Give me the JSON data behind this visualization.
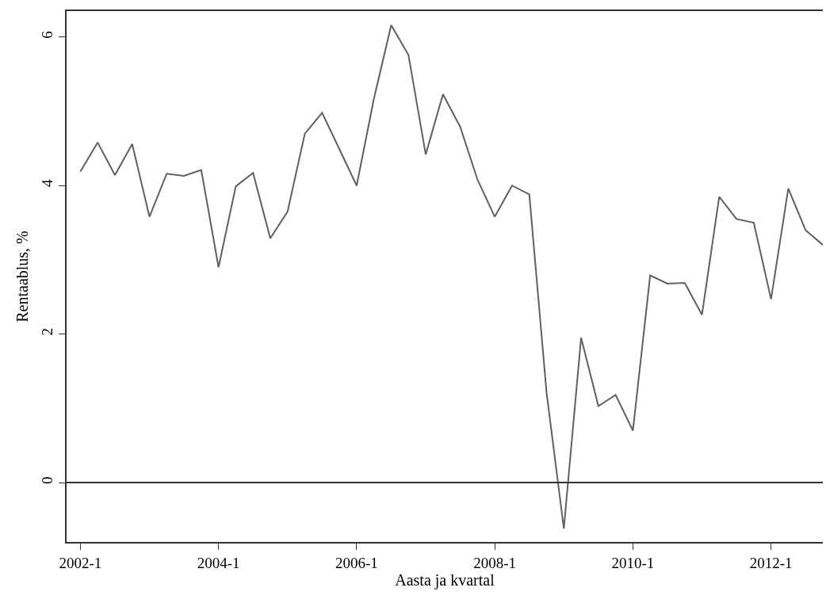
{
  "chart_data": {
    "type": "line",
    "xlabel": "Aasta ja kvartal",
    "ylabel": "Rentaablus, %",
    "categories": [
      "2002-1",
      null,
      null,
      null,
      null,
      null,
      null,
      null,
      "2004-1",
      null,
      null,
      null,
      null,
      null,
      null,
      null,
      "2006-1",
      null,
      null,
      null,
      null,
      null,
      null,
      null,
      "2008-1",
      null,
      null,
      null,
      null,
      null,
      null,
      null,
      "2010-1",
      null,
      null,
      null,
      null,
      null,
      null,
      null,
      "2012-1",
      null,
      null,
      null
    ],
    "series": [
      {
        "color": "#606060",
        "values": [
          4.19,
          4.58,
          4.14,
          4.56,
          3.58,
          4.16,
          4.13,
          4.21,
          2.9,
          3.99,
          4.17,
          3.29,
          3.65,
          4.7,
          4.98,
          4.49,
          4.0,
          5.17,
          6.16,
          5.76,
          4.42,
          5.23,
          4.79,
          4.08,
          3.58,
          4.0,
          3.88,
          1.21,
          -0.62,
          1.95,
          1.03,
          1.18,
          0.7,
          2.79,
          2.68,
          2.69,
          2.26,
          3.85,
          3.55,
          3.5,
          2.47,
          3.96,
          3.4,
          3.2
        ]
      }
    ],
    "ylim": [
      -0.8,
      6.35
    ],
    "yticks": [
      0,
      2,
      4,
      6
    ],
    "ref_lines": [
      {
        "axis": "y",
        "value": 0,
        "color": "#333333"
      }
    ],
    "marker": "none",
    "line_style": "solid"
  }
}
